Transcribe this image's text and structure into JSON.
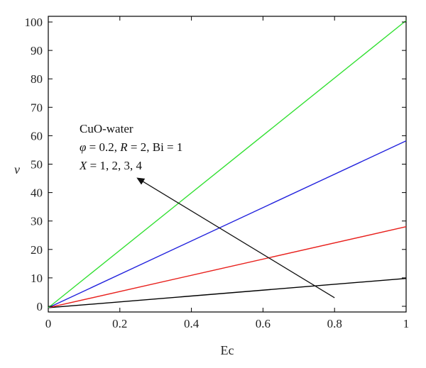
{
  "chart_data": {
    "type": "line",
    "xlabel": "Ec",
    "ylabel": "ν",
    "xlim": [
      0,
      1
    ],
    "ylim": [
      -2,
      102
    ],
    "x_ticks": [
      0,
      0.2,
      0.4,
      0.6,
      0.8,
      1
    ],
    "x_tick_labels": [
      "0",
      "0.2",
      "0.4",
      "0.6",
      "0.8",
      "1"
    ],
    "y_ticks": [
      0,
      10,
      20,
      30,
      40,
      50,
      60,
      70,
      80,
      90,
      100
    ],
    "y_tick_labels": [
      "0",
      "10",
      "20",
      "30",
      "40",
      "50",
      "60",
      "70",
      "80",
      "90",
      "100"
    ],
    "grid": false,
    "x": [
      0,
      1
    ],
    "series": [
      {
        "color": "#000000",
        "values": [
          -0.5,
          9.8
        ]
      },
      {
        "color": "#e8201c",
        "values": [
          -0.5,
          28.0
        ]
      },
      {
        "color": "#2222dd",
        "values": [
          -0.5,
          58.2
        ]
      },
      {
        "color": "#33e033",
        "values": [
          -0.5,
          100.5
        ]
      }
    ],
    "annotation": {
      "lines": [
        {
          "parts": [
            {
              "t": "CuO-water",
              "i": false
            }
          ]
        },
        {
          "parts": [
            {
              "t": "φ",
              "i": true
            },
            {
              "t": " = 0.2, ",
              "i": false
            },
            {
              "t": "R",
              "i": true
            },
            {
              "t": " = 2, Bi = 1",
              "i": false
            }
          ]
        },
        {
          "parts": [
            {
              "t": "X",
              "i": true
            },
            {
              "t": " = 1, 2, 3, 4",
              "i": false
            }
          ]
        }
      ],
      "arrow_from": [
        0.8,
        3
      ],
      "arrow_to": [
        0.25,
        45
      ]
    }
  }
}
